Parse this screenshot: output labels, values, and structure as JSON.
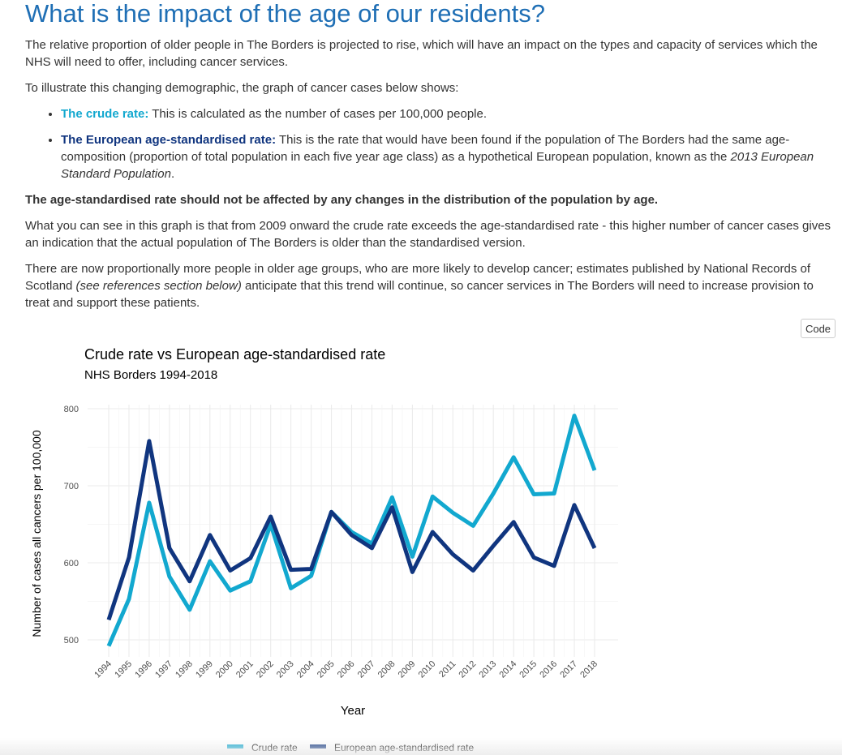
{
  "heading": "What is the impact of the age of our residents?",
  "intro": "The relative proportion of older people in The Borders is projected to rise, which will have an impact on the types and capacity of services which the NHS will need to offer, including cancer services.",
  "illustrate": "To illustrate this changing demographic, the graph of cancer cases below shows:",
  "bullets": [
    {
      "term": "The crude rate:",
      "text": " This is calculated as the number of cases per 100,000 people."
    },
    {
      "term": "The European age-standardised rate:",
      "text": " This is the rate that would have been found if the population of The Borders had the same age-composition (proportion of total population in each five year age class) as a hypothetical European population, known as the ",
      "emph": "2013 European Standard Population",
      "tail": "."
    }
  ],
  "bold_statement": "The age-standardised rate should not be affected by any changes in the distribution of the population by age.",
  "para_graph": "What you can see in this graph is that from 2009 onward the crude rate exceeds the age-standardised rate - this higher number of cancer cases gives an indication that the actual population of The Borders is older than the standardised version.",
  "para_older_a": "There are now proportionally more people in older age groups, who are more likely to develop cancer; estimates published by National Records of Scotland ",
  "para_older_emph": "(see references section below)",
  "para_older_b": " anticipate that this trend will continue, so cancer services in The Borders will need to increase provision to treat and support these patients.",
  "code_button": "Code",
  "colors": {
    "heading": "#1f6fb5",
    "crude": "#12a8cf",
    "euro": "#10357f"
  },
  "chart_data": {
    "type": "line",
    "title": "Crude rate vs European age-standardised rate",
    "subtitle": "NHS Borders 1994-2018",
    "xlabel": "Year",
    "ylabel": "Number of cases all cancers per 100,000",
    "x": [
      "1994",
      "1995",
      "1996",
      "1997",
      "1998",
      "1999",
      "2000",
      "2001",
      "2002",
      "2003",
      "2004",
      "2005",
      "2006",
      "2007",
      "2008",
      "2009",
      "2010",
      "2011",
      "2012",
      "2013",
      "2014",
      "2015",
      "2016",
      "2017",
      "2018"
    ],
    "ylim": [
      480,
      815
    ],
    "yticks": [
      500,
      600,
      700,
      800
    ],
    "grid": true,
    "legend_position": "bottom",
    "series": [
      {
        "name": "Crude rate",
        "color": "#12a8cf",
        "values": [
          492,
          553,
          678,
          582,
          539,
          602,
          564,
          576,
          650,
          567,
          583,
          666,
          640,
          625,
          685,
          608,
          686,
          665,
          648,
          690,
          737,
          689,
          690,
          791,
          720
        ]
      },
      {
        "name": "European age-standardised rate",
        "color": "#10357f",
        "values": [
          526,
          607,
          758,
          619,
          576,
          636,
          590,
          606,
          660,
          591,
          592,
          666,
          636,
          619,
          672,
          588,
          640,
          611,
          590,
          622,
          653,
          607,
          596,
          675,
          619
        ]
      }
    ]
  }
}
